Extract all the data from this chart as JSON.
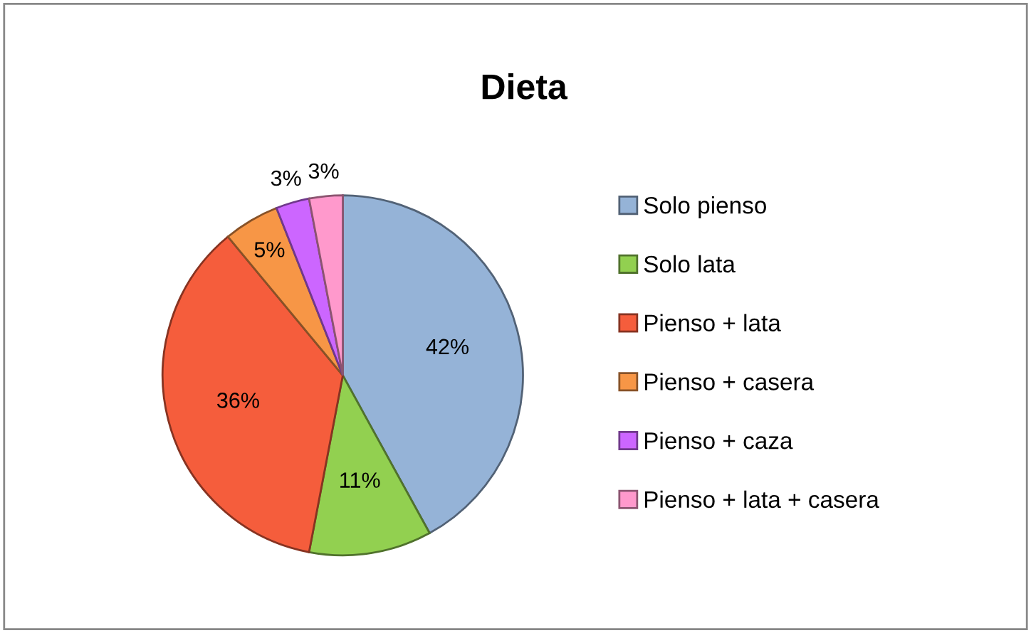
{
  "chart_data": {
    "type": "pie",
    "title": "Dieta",
    "categories": [
      "Solo pienso",
      "Solo lata",
      "Pienso + lata",
      "Pienso + casera",
      "Pienso + caza",
      "Pienso + lata + casera"
    ],
    "values": [
      42,
      11,
      36,
      5,
      3,
      3
    ],
    "colors": [
      "#95b3d7",
      "#92d050",
      "#f55d3c",
      "#f79646",
      "#cc66ff",
      "#ff99cc"
    ],
    "value_labels": [
      "42%",
      "11%",
      "36%",
      "5%",
      "3%",
      "3%"
    ],
    "legend": "right"
  }
}
